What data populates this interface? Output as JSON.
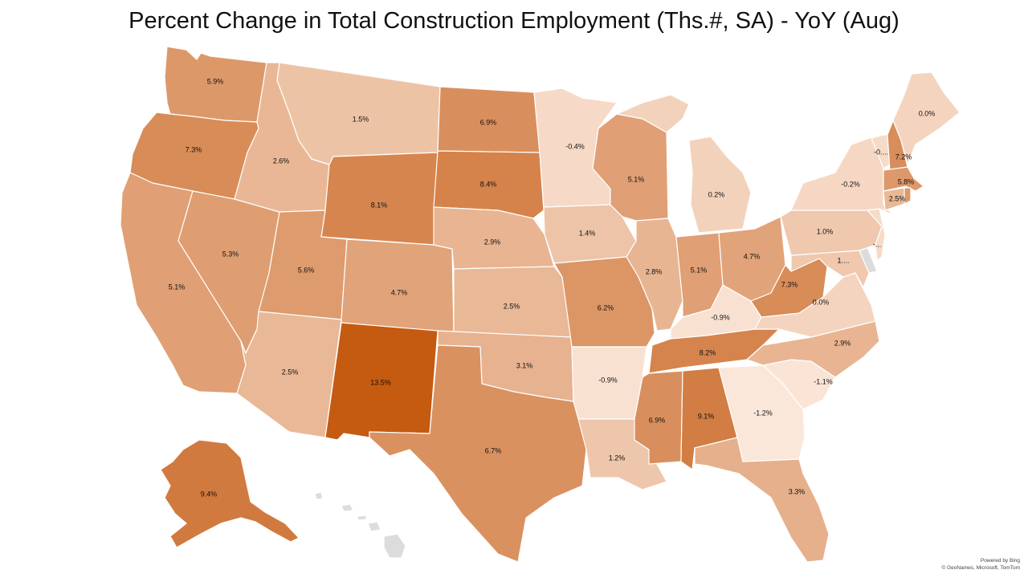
{
  "title": "Percent Change in Total Construction Employment (Ths.#, SA) - YoY (Aug)",
  "credit": {
    "line1": "Powered by Bing",
    "line2": "© GeoNames, Microsoft, TomTom"
  },
  "color_scale": {
    "low": "#fbe7da",
    "high": "#c55a11",
    "min_value": -1.2,
    "max_value": 13.5,
    "no_data": "#dcdcdc"
  },
  "states": [
    {
      "id": "WA",
      "value": 5.9,
      "label": "5.9%"
    },
    {
      "id": "OR",
      "value": 7.3,
      "label": "7.3%"
    },
    {
      "id": "CA",
      "value": 5.1,
      "label": "5.1%"
    },
    {
      "id": "NV",
      "value": 5.3,
      "label": "5.3%"
    },
    {
      "id": "ID",
      "value": 2.6,
      "label": "2.6%"
    },
    {
      "id": "MT",
      "value": 1.5,
      "label": "1.5%"
    },
    {
      "id": "WY",
      "value": 8.1,
      "label": "8.1%"
    },
    {
      "id": "UT",
      "value": 5.6,
      "label": "5.6%"
    },
    {
      "id": "AZ",
      "value": 2.5,
      "label": "2.5%"
    },
    {
      "id": "CO",
      "value": 4.7,
      "label": "4.7%"
    },
    {
      "id": "NM",
      "value": 13.5,
      "label": "13.5%"
    },
    {
      "id": "ND",
      "value": 6.9,
      "label": "6.9%"
    },
    {
      "id": "SD",
      "value": 8.4,
      "label": "8.4%"
    },
    {
      "id": "NE",
      "value": 2.9,
      "label": "2.9%"
    },
    {
      "id": "KS",
      "value": 2.5,
      "label": "2.5%"
    },
    {
      "id": "OK",
      "value": 3.1,
      "label": "3.1%"
    },
    {
      "id": "TX",
      "value": 6.7,
      "label": "6.7%"
    },
    {
      "id": "MN",
      "value": -0.4,
      "label": "-0.4%"
    },
    {
      "id": "IA",
      "value": 1.4,
      "label": "1.4%"
    },
    {
      "id": "MO",
      "value": 6.2,
      "label": "6.2%"
    },
    {
      "id": "AR",
      "value": -0.9,
      "label": "-0.9%"
    },
    {
      "id": "LA",
      "value": 1.2,
      "label": "1.2%"
    },
    {
      "id": "WI",
      "value": 5.1,
      "label": "5.1%"
    },
    {
      "id": "IL",
      "value": 2.8,
      "label": "2.8%"
    },
    {
      "id": "MI",
      "value": 0.2,
      "label": "0.2%"
    },
    {
      "id": "IN",
      "value": 5.1,
      "label": "5.1%"
    },
    {
      "id": "OH",
      "value": 4.7,
      "label": "4.7%"
    },
    {
      "id": "KY",
      "value": -0.9,
      "label": "-0.9%"
    },
    {
      "id": "TN",
      "value": 8.2,
      "label": "8.2%"
    },
    {
      "id": "MS",
      "value": 6.9,
      "label": "6.9%"
    },
    {
      "id": "AL",
      "value": 9.1,
      "label": "9.1%"
    },
    {
      "id": "GA",
      "value": -1.2,
      "label": "-1.2%"
    },
    {
      "id": "FL",
      "value": 3.3,
      "label": "3.3%"
    },
    {
      "id": "SC",
      "value": -1.1,
      "label": "-1.1%"
    },
    {
      "id": "NC",
      "value": 2.9,
      "label": "2.9%"
    },
    {
      "id": "VA",
      "value": 0.0,
      "label": "0.0%"
    },
    {
      "id": "WV",
      "value": 7.3,
      "label": "7.3%"
    },
    {
      "id": "MD",
      "value": 1.0,
      "label": "1...."
    },
    {
      "id": "DE",
      "value": null,
      "label": ""
    },
    {
      "id": "PA",
      "value": 1.0,
      "label": "1.0%"
    },
    {
      "id": "NJ",
      "value": -0.5,
      "label": "-..."
    },
    {
      "id": "NY",
      "value": -0.2,
      "label": "-0.2%"
    },
    {
      "id": "VT",
      "value": -0.5,
      "label": "-0...."
    },
    {
      "id": "NH",
      "value": 7.2,
      "label": "7.2%"
    },
    {
      "id": "MA",
      "value": 5.8,
      "label": "5.8%"
    },
    {
      "id": "CT",
      "value": 2.5,
      "label": "2.5%"
    },
    {
      "id": "RI",
      "value": 5.8,
      "label": ""
    },
    {
      "id": "ME",
      "value": 0.0,
      "label": "0.0%"
    },
    {
      "id": "AK",
      "value": 9.4,
      "label": "9.4%"
    },
    {
      "id": "HI",
      "value": null,
      "label": ""
    }
  ]
}
